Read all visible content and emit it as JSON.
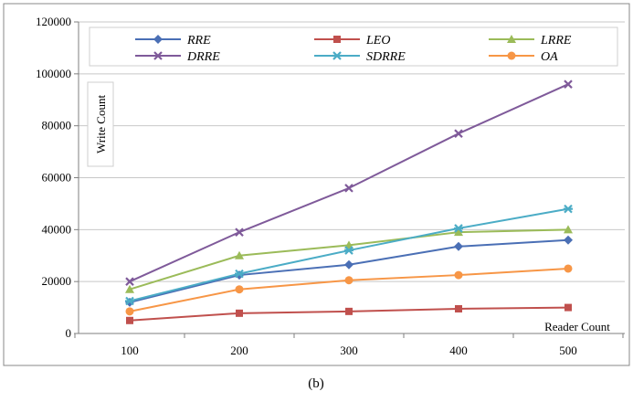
{
  "chart_data": {
    "type": "line",
    "caption": "(b)",
    "xlabel": "Reader Count",
    "ylabel": "Write Count",
    "x": [
      100,
      200,
      300,
      400,
      500
    ],
    "ylim": [
      0,
      120000
    ],
    "yticks": [
      0,
      20000,
      40000,
      60000,
      80000,
      100000,
      120000
    ],
    "grid": "horizontal",
    "legend": "top",
    "series": [
      {
        "name": "RRE",
        "color": "#4a6fb5",
        "marker": "diamond",
        "values": [
          12000,
          22500,
          26500,
          33500,
          36000
        ]
      },
      {
        "name": "LEO",
        "color": "#c0504d",
        "marker": "square",
        "values": [
          5000,
          7800,
          8500,
          9500,
          10000
        ]
      },
      {
        "name": "LRRE",
        "color": "#9bbb59",
        "marker": "triangle",
        "values": [
          17000,
          30000,
          34000,
          39000,
          40000
        ]
      },
      {
        "name": "DRRE",
        "color": "#7f5a9a",
        "marker": "x",
        "values": [
          20000,
          39000,
          56000,
          77000,
          96000
        ]
      },
      {
        "name": "SDRRE",
        "color": "#4bacc6",
        "marker": "star",
        "values": [
          12500,
          23000,
          32000,
          40500,
          48000
        ]
      },
      {
        "name": "OA",
        "color": "#f79646",
        "marker": "circle",
        "values": [
          8500,
          17000,
          20500,
          22500,
          25000
        ]
      }
    ]
  }
}
